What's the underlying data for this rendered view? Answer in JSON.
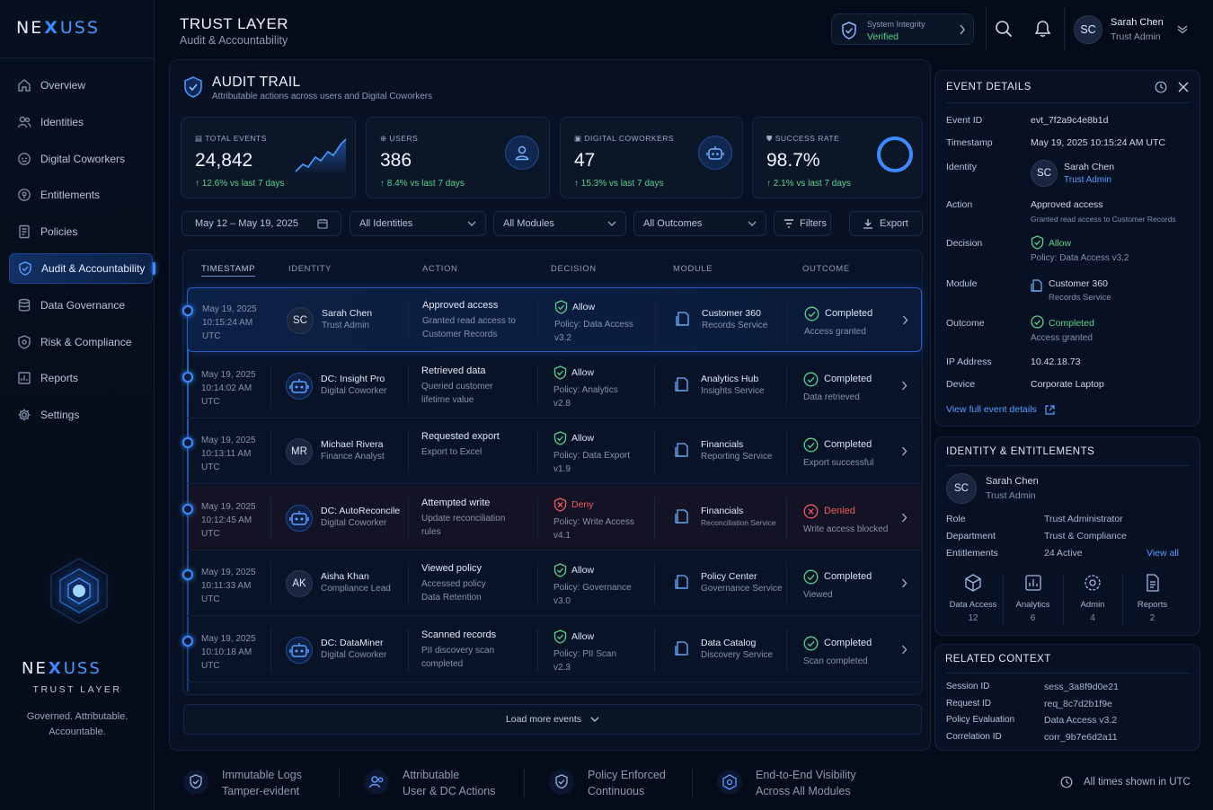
{
  "brand": {
    "pre": "NE",
    "x": "X",
    "post": "USS",
    "tagline": "TRUST LAYER",
    "motto1": "Governed. Attributable.",
    "motto2": "Accountable."
  },
  "nav": [
    {
      "label": "Overview",
      "icon": "home-icon"
    },
    {
      "label": "Identities",
      "icon": "users-icon"
    },
    {
      "label": "Digital Coworkers",
      "icon": "bot-icon"
    },
    {
      "label": "Entitlements",
      "icon": "key-icon"
    },
    {
      "label": "Policies",
      "icon": "document-icon"
    },
    {
      "label": "Audit & Accountability",
      "icon": "shield-icon",
      "active": true
    },
    {
      "label": "Data Governance",
      "icon": "database-icon"
    },
    {
      "label": "Risk & Compliance",
      "icon": "risk-icon"
    },
    {
      "label": "Reports",
      "icon": "chart-icon"
    },
    {
      "label": "Settings",
      "icon": "gear-icon"
    }
  ],
  "header": {
    "title": "TRUST LAYER",
    "subtitle": "Audit & Accountability",
    "integrity_label": "System Integrity",
    "integrity_value": "Verified",
    "user_initials": "SC",
    "user_name": "Sarah Chen",
    "user_role": "Trust Admin"
  },
  "audit": {
    "title": "AUDIT TRAIL",
    "subtitle": "Attributable actions across users and Digital Coworkers"
  },
  "stats": [
    {
      "label": "TOTAL EVENTS",
      "value": "24,842",
      "delta": "↑ 12.6% vs last 7 days"
    },
    {
      "label": "USERS",
      "value": "386",
      "delta": "↑ 8.4% vs last 7 days"
    },
    {
      "label": "DIGITAL COWORKERS",
      "value": "47",
      "delta": "↑ 15.3% vs last 7 days"
    },
    {
      "label": "SUCCESS RATE",
      "value": "98.7%",
      "delta": "↑ 2.1% vs last 7 days",
      "ring": 0.987
    }
  ],
  "filters": {
    "date": "May 12 – May 19, 2025",
    "identities": "All Identities",
    "modules": "All Modules",
    "outcomes": "All Outcomes",
    "filters_btn": "Filters",
    "export_btn": "Export"
  },
  "columns": [
    "TIMESTAMP",
    "IDENTITY",
    "ACTION",
    "DECISION",
    "MODULE",
    "OUTCOME"
  ],
  "rows": [
    {
      "date": "May 19, 2025",
      "time": "10:15:24 AM",
      "tz": "UTC",
      "avatar": "SC",
      "is_bot": false,
      "name": "Sarah Chen",
      "role": "Trust Admin",
      "action": "Approved access",
      "action_d1": "Granted read access to",
      "action_d2": "Customer Records",
      "decision": "Allow",
      "policy1": "Policy: Data Access",
      "policy2": "v3.2",
      "module": "Customer 360",
      "service": "Records Service",
      "outcome": "Completed",
      "outcome_d": "Access granted",
      "denied": false
    },
    {
      "date": "May 19, 2025",
      "time": "10:14:02 AM",
      "tz": "UTC",
      "avatar": "",
      "is_bot": true,
      "name": "DC: Insight Pro",
      "role": "Digital Coworker",
      "action": "Retrieved data",
      "action_d1": "Queried customer",
      "action_d2": "lifetime value",
      "decision": "Allow",
      "policy1": "Policy: Analytics",
      "policy2": "v2.8",
      "module": "Analytics Hub",
      "service": "Insights Service",
      "outcome": "Completed",
      "outcome_d": "Data retrieved",
      "denied": false
    },
    {
      "date": "May 19, 2025",
      "time": "10:13:11 AM",
      "tz": "UTC",
      "avatar": "MR",
      "is_bot": false,
      "name": "Michael Rivera",
      "role": "Finance Analyst",
      "action": "Requested export",
      "action_d1": "Export to Excel",
      "action_d2": "",
      "decision": "Allow",
      "policy1": "Policy: Data Export",
      "policy2": "v1.9",
      "module": "Financials",
      "service": "Reporting Service",
      "outcome": "Completed",
      "outcome_d": "Export successful",
      "denied": false
    },
    {
      "date": "May 19, 2025",
      "time": "10:12:45 AM",
      "tz": "UTC",
      "avatar": "",
      "is_bot": true,
      "name": "DC: AutoReconcile",
      "role": "Digital Coworker",
      "action": "Attempted write",
      "action_d1": "Update reconciliation",
      "action_d2": "rules",
      "decision": "Deny",
      "policy1": "Policy: Write Access",
      "policy2": "v4.1",
      "module": "Financials",
      "service": "Reconciliation Service",
      "outcome": "Denied",
      "outcome_d": "Write access blocked",
      "denied": true
    },
    {
      "date": "May 19, 2025",
      "time": "10:11:33 AM",
      "tz": "UTC",
      "avatar": "AK",
      "is_bot": false,
      "name": "Aisha Khan",
      "role": "Compliance Lead",
      "action": "Viewed policy",
      "action_d1": "Accessed policy",
      "action_d2": "Data Retention",
      "decision": "Allow",
      "policy1": "Policy: Governance",
      "policy2": "v3.0",
      "module": "Policy Center",
      "service": "Governance Service",
      "outcome": "Completed",
      "outcome_d": "Viewed",
      "denied": false
    },
    {
      "date": "May 19, 2025",
      "time": "10:10:18 AM",
      "tz": "UTC",
      "avatar": "",
      "is_bot": true,
      "name": "DC: DataMiner",
      "role": "Digital Coworker",
      "action": "Scanned records",
      "action_d1": "PII discovery scan",
      "action_d2": "completed",
      "decision": "Allow",
      "policy1": "Policy: PII Scan",
      "policy2": "v2.3",
      "module": "Data Catalog",
      "service": "Discovery Service",
      "outcome": "Completed",
      "outcome_d": "Scan completed",
      "denied": false
    }
  ],
  "load_more": "Load more events",
  "event": {
    "title": "EVENT DETAILS",
    "id_k": "Event ID",
    "id_v": "evt_7f2a9c4e8b1d",
    "ts_k": "Timestamp",
    "ts_v": "May 19, 2025 10:15:24 AM UTC",
    "identity_k": "Identity",
    "identity_initials": "SC",
    "identity_name": "Sarah Chen",
    "identity_role": "Trust Admin",
    "action_k": "Action",
    "action_v": "Approved access",
    "action_d": "Granted read access to Customer Records",
    "decision_k": "Decision",
    "decision_v": "Allow",
    "decision_d": "Policy: Data Access v3.2",
    "module_k": "Module",
    "module_v": "Customer 360",
    "module_d": "Records Service",
    "outcome_k": "Outcome",
    "outcome_v": "Completed",
    "outcome_d": "Access granted",
    "ip_k": "IP Address",
    "ip_v": "10.42.18.73",
    "device_k": "Device",
    "device_v": "Corporate Laptop",
    "link": "View full event details"
  },
  "entitlements": {
    "title": "IDENTITY & ENTITLEMENTS",
    "initials": "SC",
    "name": "Sarah Chen",
    "role_label": "Trust Admin",
    "role_k": "Role",
    "role_v": "Trust Administrator",
    "dept_k": "Department",
    "dept_v": "Trust & Compliance",
    "ent_k": "Entitlements",
    "ent_v": "24 Active",
    "view_all": "View all",
    "tiles": [
      {
        "label": "Data Access",
        "count": "12",
        "icon": "cube-icon"
      },
      {
        "label": "Analytics",
        "count": "6",
        "icon": "analytics-icon"
      },
      {
        "label": "Admin",
        "count": "4",
        "icon": "admin-icon"
      },
      {
        "label": "Reports",
        "count": "2",
        "icon": "report-icon"
      }
    ]
  },
  "context": {
    "title": "RELATED CONTEXT",
    "items": [
      {
        "k": "Session ID",
        "v": "sess_3a8f9d0e21"
      },
      {
        "k": "Request ID",
        "v": "req_8c7d2b1f9e"
      },
      {
        "k": "Policy Evaluation",
        "v": "Data Access v3.2"
      },
      {
        "k": "Correlation ID",
        "v": "corr_9b7e6d2a11"
      }
    ]
  },
  "footer": [
    {
      "t": "Immutable Logs",
      "s": "Tamper-evident"
    },
    {
      "t": "Attributable",
      "s": "User & DC Actions"
    },
    {
      "t": "Policy Enforced",
      "s": "Continuous"
    },
    {
      "t": "End-to-End Visibility",
      "s": "Across All Modules"
    }
  ],
  "footer_note": "All times shown in UTC",
  "colors": {
    "accent": "#3b8bff",
    "success": "#58d28c",
    "danger": "#ef5a62",
    "bg": "#050b18"
  }
}
